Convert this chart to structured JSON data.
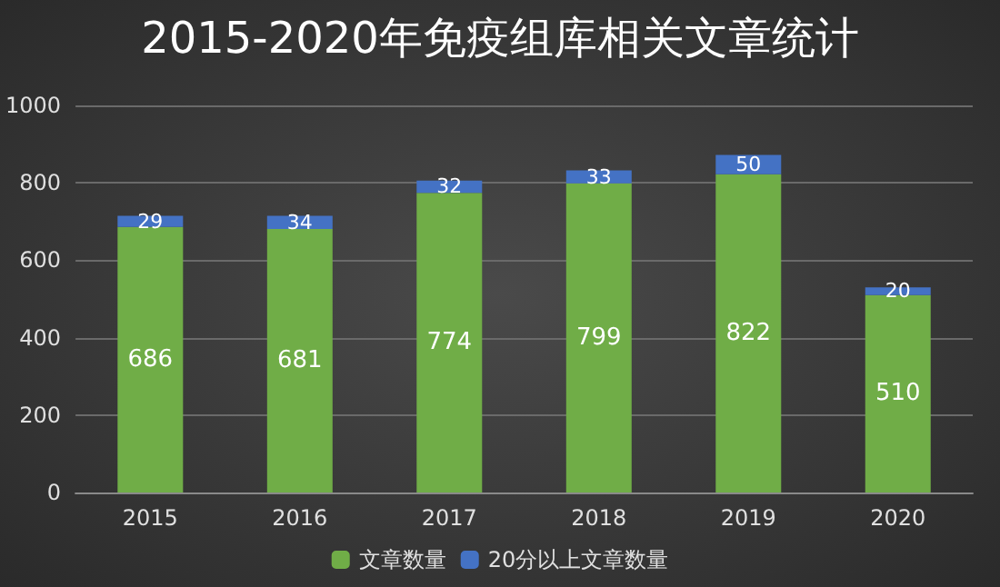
{
  "chart_data": {
    "type": "bar",
    "title": "2015-2020年免疫组库相关文章统计",
    "categories": [
      "2015",
      "2016",
      "2017",
      "2018",
      "2019",
      "2020"
    ],
    "series": [
      {
        "name": "文章数量",
        "color": "#70ad47",
        "values": [
          686,
          681,
          774,
          799,
          822,
          510
        ]
      },
      {
        "name": "20分以上文章数量",
        "color": "#4472c4",
        "values": [
          29,
          34,
          32,
          33,
          50,
          20
        ]
      }
    ],
    "stacked": true,
    "data_labels": true,
    "ylim": [
      0,
      1000
    ],
    "yticks": [
      0,
      200,
      400,
      600,
      800,
      1000
    ],
    "grid": "y",
    "legend": "bottom"
  }
}
